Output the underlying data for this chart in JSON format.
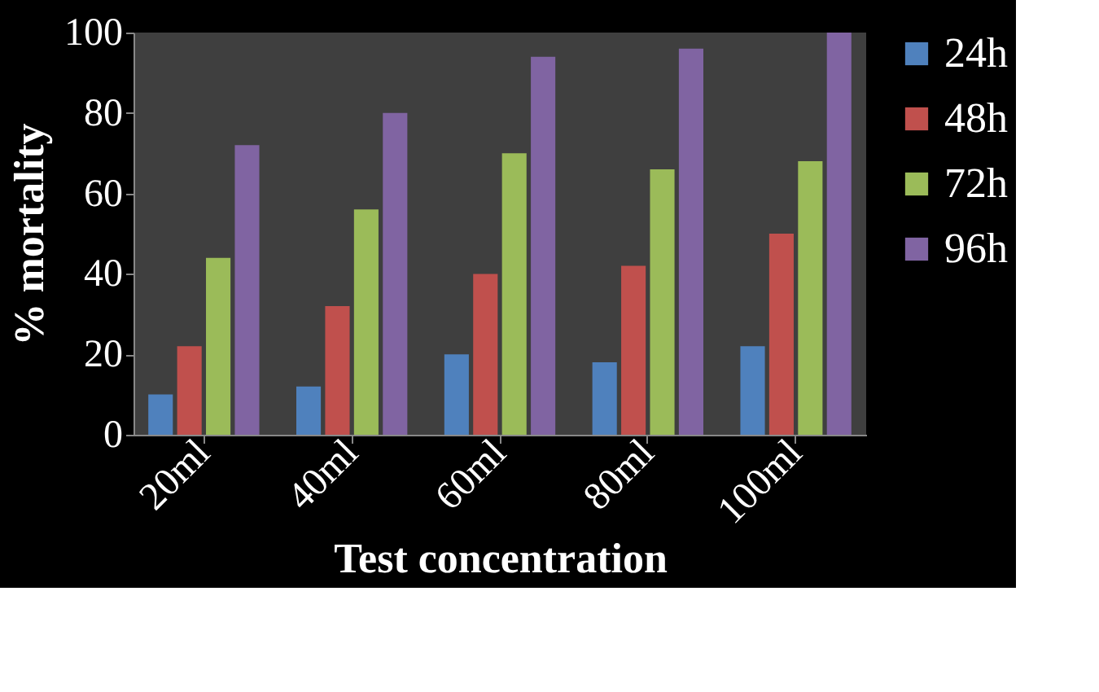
{
  "chart_data": {
    "type": "bar",
    "xlabel": "Test concentration",
    "ylabel": "% mortality",
    "categories": [
      "20ml",
      "40ml",
      "60ml",
      "80ml",
      "100ml"
    ],
    "series": [
      {
        "name": "24h",
        "color": "#4f81bd",
        "values": [
          10,
          12,
          20,
          18,
          22
        ]
      },
      {
        "name": "48h",
        "color": "#c0504d",
        "values": [
          22,
          32,
          40,
          42,
          50
        ]
      },
      {
        "name": "72h",
        "color": "#9bbb59",
        "values": [
          44,
          56,
          70,
          66,
          68
        ]
      },
      {
        "name": "96h",
        "color": "#8064a2",
        "values": [
          72,
          80,
          94,
          96,
          100
        ]
      }
    ],
    "ylim": [
      0,
      100
    ],
    "yticks": [
      0,
      20,
      40,
      60,
      80,
      100
    ],
    "grid": false,
    "legend": "right"
  }
}
